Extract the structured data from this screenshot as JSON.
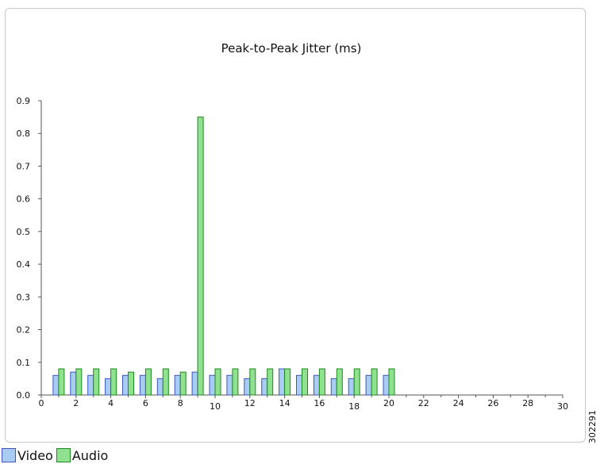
{
  "figure_id": "302291",
  "legend": {
    "video_label": "Video",
    "audio_label": "Audio"
  },
  "colors": {
    "video_fill": "#a9ccf2",
    "video_stroke": "#3c55c8",
    "audio_fill": "#8fe08f",
    "audio_stroke": "#1f8a1f",
    "axis": "#555555"
  },
  "chart_data": {
    "type": "bar",
    "title": "Peak-to-Peak Jitter (ms)",
    "xlabel": "",
    "ylabel": "",
    "xlim": [
      0,
      30
    ],
    "ylim": [
      0,
      0.9
    ],
    "x_ticks": [
      "0",
      "2",
      "4",
      "6",
      "8",
      "10",
      "12",
      "14",
      "16",
      "18",
      "20",
      "22",
      "24",
      "26",
      "28",
      "30"
    ],
    "y_ticks": [
      "0.0",
      "0.1",
      "0.2",
      "0.3",
      "0.4",
      "0.5",
      "0.6",
      "0.7",
      "0.8",
      "0.9"
    ],
    "grid": false,
    "legend_position": "bottom-left",
    "x": [
      1,
      2,
      3,
      4,
      5,
      6,
      7,
      8,
      9,
      10,
      11,
      12,
      13,
      14,
      15,
      16,
      17,
      18,
      19,
      20
    ],
    "series": [
      {
        "name": "Video",
        "values": [
          0.06,
          0.07,
          0.06,
          0.05,
          0.06,
          0.06,
          0.05,
          0.06,
          0.07,
          0.06,
          0.06,
          0.05,
          0.05,
          0.08,
          0.06,
          0.06,
          0.05,
          0.05,
          0.06,
          0.06
        ]
      },
      {
        "name": "Audio",
        "values": [
          0.08,
          0.08,
          0.08,
          0.08,
          0.07,
          0.08,
          0.08,
          0.07,
          0.85,
          0.08,
          0.08,
          0.08,
          0.08,
          0.08,
          0.08,
          0.08,
          0.08,
          0.08,
          0.08,
          0.08
        ]
      }
    ]
  }
}
